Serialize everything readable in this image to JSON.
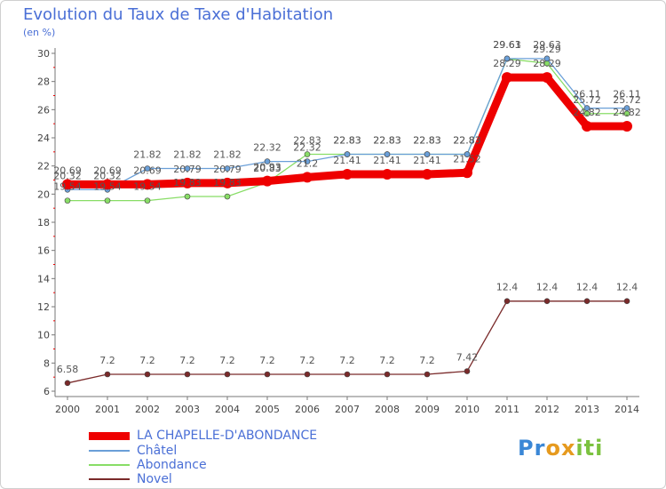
{
  "title": "Evolution du Taux de Taxe d'Habitation",
  "unit": "(en %)",
  "chart_data": {
    "type": "line",
    "x": [
      2000,
      2001,
      2002,
      2003,
      2004,
      2005,
      2006,
      2007,
      2008,
      2009,
      2010,
      2011,
      2012,
      2013,
      2014
    ],
    "ylim": [
      6,
      30
    ],
    "yticks": [
      6,
      8,
      10,
      12,
      14,
      16,
      18,
      20,
      22,
      24,
      26,
      28,
      30
    ],
    "grid": false,
    "legend_position": "bottom-left",
    "series": [
      {
        "name": "LA CHAPELLE-D'ABONDANCE",
        "color": "#ee0000",
        "values": [
          20.69,
          20.69,
          20.69,
          20.79,
          20.79,
          20.93,
          21.2,
          21.41,
          21.41,
          21.41,
          21.52,
          28.29,
          28.29,
          24.82,
          24.82
        ],
        "labels": [
          "20.69",
          "20.69",
          "20.69",
          "20.79",
          "20.79",
          "20.93",
          "21.2",
          "21.41",
          "21.41",
          "21.41",
          "21.52",
          "28.29",
          "28.29",
          "24.82",
          "24.82"
        ]
      },
      {
        "name": "Châtel",
        "color": "#6a9fd8",
        "values": [
          20.32,
          20.32,
          21.82,
          21.82,
          21.82,
          22.32,
          22.32,
          22.83,
          22.83,
          22.83,
          22.83,
          29.63,
          29.63,
          26.11,
          26.11
        ],
        "labels": [
          "20.32",
          "20.32",
          "21.82",
          "21.82",
          "21.82",
          "22.32",
          "22.32",
          "22.83",
          "22.83",
          "22.83",
          "22.83",
          "29.63",
          "29.63",
          "26.11",
          "26.11"
        ]
      },
      {
        "name": "Abondance",
        "color": "#88dd66",
        "values": [
          19.54,
          19.54,
          19.54,
          19.83,
          19.83,
          20.83,
          22.83,
          22.83,
          22.83,
          22.83,
          22.83,
          29.61,
          29.29,
          25.72,
          25.72
        ],
        "labels": [
          "19.54",
          "19.54",
          "19.54",
          "19.83",
          "19.83",
          "20.83",
          "22.83",
          "22.83",
          "22.83",
          "22.83",
          "22.83",
          "29.61",
          "29.29",
          "25.72",
          "25.72"
        ]
      },
      {
        "name": "Novel",
        "color": "#7a2a2a",
        "values": [
          6.58,
          7.2,
          7.2,
          7.2,
          7.2,
          7.2,
          7.2,
          7.2,
          7.2,
          7.2,
          7.42,
          12.4,
          12.4,
          12.4,
          12.4
        ],
        "labels": [
          "6.58",
          "7.2",
          "7.2",
          "7.2",
          "7.2",
          "7.2",
          "7.2",
          "7.2",
          "7.2",
          "7.2",
          "7.42",
          "12.4",
          "12.4",
          "12.4",
          "12.4"
        ]
      }
    ]
  },
  "logo": {
    "letters": [
      "P",
      "r",
      "o",
      "x",
      "i",
      "t",
      "i"
    ],
    "colors": [
      "#3a87d6",
      "#3a87d6",
      "#e69a1e",
      "#e69a1e",
      "#7cc240",
      "#7cc240",
      "#7cc240"
    ]
  }
}
